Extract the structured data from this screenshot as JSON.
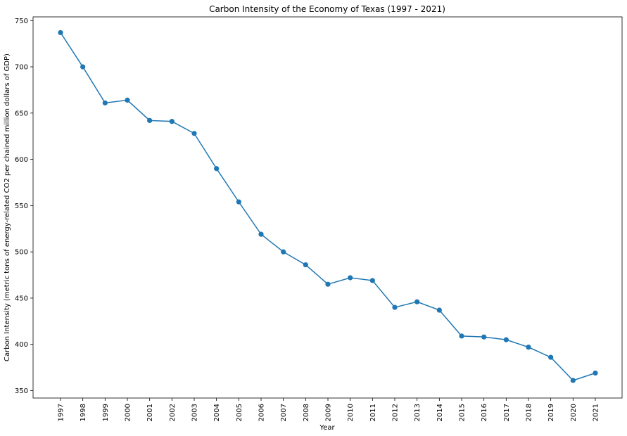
{
  "chart_data": {
    "type": "line",
    "title": "Carbon Intensity of the Economy of Texas (1997 - 2021)",
    "xlabel": "Year",
    "ylabel": "Carbon Intensity (metric tons of energy-related CO2 per chained million dollars of GDP)",
    "x": [
      "1997",
      "1998",
      "1999",
      "2000",
      "2001",
      "2002",
      "2003",
      "2004",
      "2005",
      "2006",
      "2007",
      "2008",
      "2009",
      "2010",
      "2011",
      "2012",
      "2013",
      "2014",
      "2015",
      "2016",
      "2017",
      "2018",
      "2019",
      "2020",
      "2021"
    ],
    "series": [
      {
        "values": [
          737,
          700,
          661,
          664,
          642,
          641,
          628,
          590,
          554,
          519,
          500,
          486,
          465,
          472,
          469,
          440,
          446,
          437,
          409,
          408,
          405,
          397,
          386,
          361,
          369
        ]
      }
    ],
    "yticks": [
      350,
      400,
      450,
      500,
      550,
      600,
      650,
      700,
      750
    ],
    "ylim": [
      342,
      754
    ],
    "grid": false,
    "line_color": "#1f77b4",
    "marker": "circle"
  }
}
